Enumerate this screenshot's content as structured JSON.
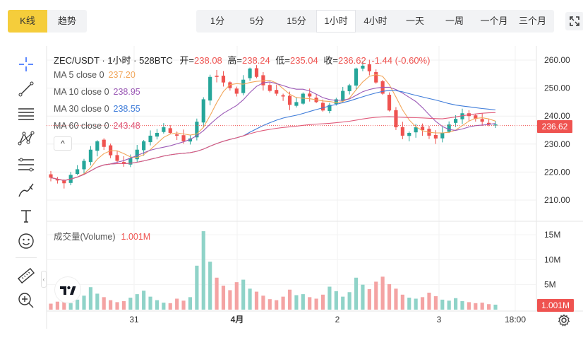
{
  "view_tabs": [
    {
      "label": "K线",
      "active": true
    },
    {
      "label": "趋势",
      "active": false
    }
  ],
  "intervals": [
    {
      "label": "1分",
      "active": false
    },
    {
      "label": "5分",
      "active": false
    },
    {
      "label": "15分",
      "active": false
    },
    {
      "label": "1小时",
      "active": true
    },
    {
      "label": "4小时",
      "active": false
    },
    {
      "label": "一天",
      "active": false
    },
    {
      "label": "一周",
      "active": false
    },
    {
      "label": "一个月",
      "active": false
    },
    {
      "label": "三个月",
      "active": false
    }
  ],
  "tools": [
    "crosshair-icon",
    "trend-line-icon",
    "horizontal-lines-icon",
    "pattern-icon",
    "fib-icon",
    "brush-icon",
    "text-icon",
    "emoji-icon",
    "ruler-icon",
    "zoom-in-icon"
  ],
  "legend": {
    "symbol": "ZEC/USDT · 1小时 · 528BTC",
    "open_label": "开=",
    "open": "238.08",
    "high_label": "高=",
    "high": "238.24",
    "low_label": "低=",
    "low": "235.04",
    "close_label": "收=",
    "close": "236.62",
    "change": "-1.44 (-0.60%)"
  },
  "ma": [
    {
      "label": "MA 5 close 0",
      "value": "237.20",
      "color": "#f2a65a"
    },
    {
      "label": "MA 10 close 0",
      "value": "238.95",
      "color": "#9b59b6"
    },
    {
      "label": "MA 30 close 0",
      "value": "238.55",
      "color": "#3d7bd9"
    },
    {
      "label": "MA 60 close 0",
      "value": "243.48",
      "color": "#e05a7a"
    }
  ],
  "legend_toggle": "^",
  "volume_legend": {
    "label": "成交量(Volume)",
    "value": "1.001M"
  },
  "price_tag": "236.62",
  "volume_tag": "1.001M",
  "colors": {
    "up": "#26a69a",
    "down": "#ef5350",
    "up_vol": "#8fd3c8",
    "down_vol": "#f4a3a3",
    "accent": "#f5cd3b"
  },
  "chart_data": {
    "type": "candlestick",
    "price_axis": {
      "min": 205,
      "max": 265,
      "ticks": [
        "260.00",
        "250.00",
        "240.00",
        "230.00",
        "220.00",
        "210.00"
      ]
    },
    "volume_axis": {
      "ticks": [
        "15M",
        "10M",
        "5M"
      ]
    },
    "x_ticks": [
      "31",
      "4月",
      "2",
      "3",
      "18:00"
    ],
    "last_price": 236.62,
    "close_path": [
      218,
      217,
      216,
      219,
      221,
      224,
      228,
      231,
      229,
      226,
      224,
      223,
      225,
      228,
      231,
      233,
      234,
      236,
      234,
      233,
      231,
      232,
      238,
      246,
      254,
      254,
      252,
      250,
      248,
      253,
      257,
      254,
      251,
      249,
      248,
      247,
      244,
      245,
      248,
      247,
      245,
      242,
      244,
      246,
      249,
      251,
      257,
      258,
      256,
      252,
      248,
      242,
      236,
      233,
      234,
      236,
      235,
      233,
      232,
      234,
      237,
      239,
      241,
      240,
      239,
      238,
      237,
      237
    ],
    "volumes": [
      1.2,
      1.6,
      1.8,
      1.3,
      2.0,
      2.8,
      4.5,
      3.2,
      2.5,
      1.9,
      1.5,
      1.7,
      2.4,
      3.1,
      3.8,
      2.6,
      1.9,
      1.4,
      1.3,
      2.2,
      1.8,
      2.5,
      8.8,
      15.7,
      9.6,
      6.4,
      4.8,
      3.9,
      5.5,
      6.0,
      4.2,
      3.6,
      2.8,
      2.1,
      1.9,
      2.6,
      4.0,
      2.9,
      3.1,
      2.5,
      2.2,
      3.0,
      4.6,
      3.7,
      2.6,
      3.5,
      6.4,
      5.0,
      4.1,
      5.6,
      6.6,
      5.1,
      4.2,
      3.0,
      2.4,
      2.2,
      2.5,
      3.4,
      2.7,
      2.0,
      1.8,
      2.3,
      1.7,
      1.5,
      1.3,
      1.4,
      1.1,
      1.0
    ]
  }
}
